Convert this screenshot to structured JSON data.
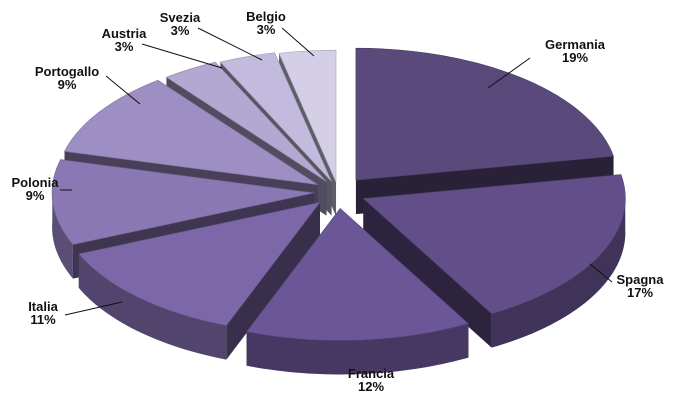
{
  "chart_data": {
    "type": "pie",
    "style": "3d-exploded",
    "slices": [
      {
        "name": "Germania",
        "value_label": "19%",
        "value": 19,
        "color": "#5a4a7c"
      },
      {
        "name": "Spagna",
        "value_label": "17%",
        "value": 17,
        "color": "#624f89"
      },
      {
        "name": "Francia",
        "value_label": "12%",
        "value": 12,
        "color": "#6b5698"
      },
      {
        "name": "Italia",
        "value_label": "11%",
        "value": 11,
        "color": "#7c68a8"
      },
      {
        "name": "Polonia",
        "value_label": "9%",
        "value": 9,
        "color": "#8a78b4"
      },
      {
        "name": "Portogallo",
        "value_label": "9%",
        "value": 9,
        "color": "#9d8ec3"
      },
      {
        "name": "Austria",
        "value_label": "3%",
        "value": 3,
        "color": "#b3a8d2"
      },
      {
        "name": "Svezia",
        "value_label": "3%",
        "value": 3,
        "color": "#c3bbdd"
      },
      {
        "name": "Belgio",
        "value_label": "3%",
        "value": 3,
        "color": "#d4cee7"
      }
    ]
  }
}
